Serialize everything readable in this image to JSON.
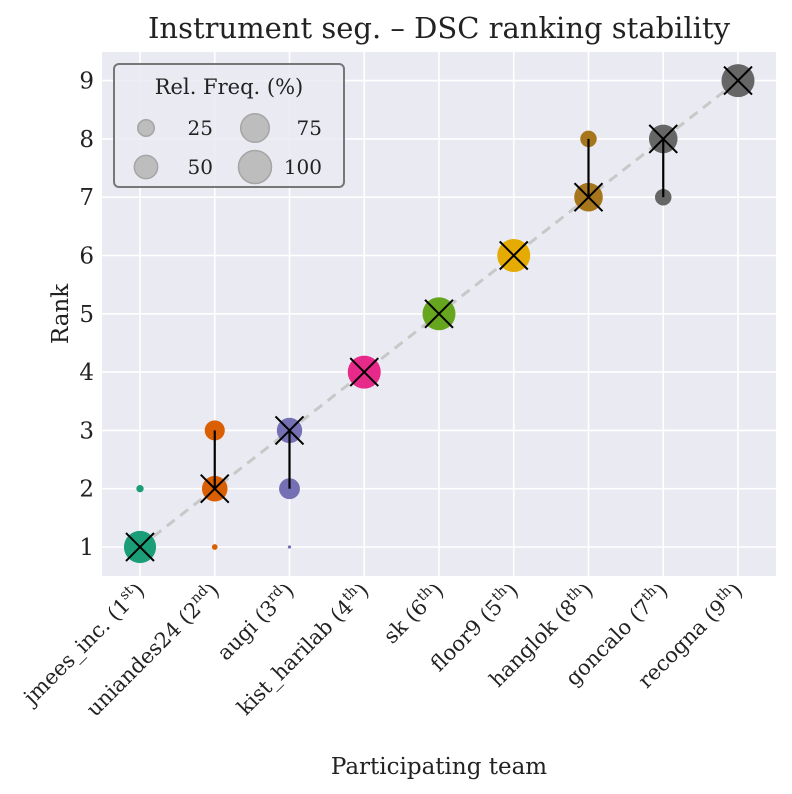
{
  "chart_data": {
    "type": "scatter",
    "title": "Instrument seg. – DSC ranking stability",
    "xlabel": "Participating team",
    "ylabel": "Rank",
    "ylim": [
      0.5,
      9.5
    ],
    "y_ticks": [
      "1",
      "2",
      "3",
      "4",
      "5",
      "6",
      "7",
      "8",
      "9"
    ],
    "grid": true,
    "legend": {
      "title": "Rel. Freq. (%)",
      "position": "top-left",
      "entries": [
        {
          "label": "25",
          "size_value": 25
        },
        {
          "label": "50",
          "size_value": 50
        },
        {
          "label": "75",
          "size_value": 75
        },
        {
          "label": "100",
          "size_value": 100
        }
      ]
    },
    "teams": [
      {
        "name": "jmees_inc.",
        "rank_ordinal": "1",
        "suffix": "st",
        "color": "#1b9e77",
        "median_rank": 1,
        "distribution": [
          {
            "rank": 1,
            "freq": 95
          },
          {
            "rank": 2,
            "freq": 5
          }
        ],
        "ci": [
          1,
          1
        ]
      },
      {
        "name": "uniandes24",
        "rank_ordinal": "2",
        "suffix": "nd",
        "color": "#d95f02",
        "median_rank": 2,
        "distribution": [
          {
            "rank": 1,
            "freq": 3
          },
          {
            "rank": 2,
            "freq": 60
          },
          {
            "rank": 3,
            "freq": 37
          }
        ],
        "ci": [
          2,
          3
        ]
      },
      {
        "name": "augi",
        "rank_ordinal": "3",
        "suffix": "rd",
        "color": "#7570b3",
        "median_rank": 3,
        "distribution": [
          {
            "rank": 1,
            "freq": 1
          },
          {
            "rank": 2,
            "freq": 40
          },
          {
            "rank": 3,
            "freq": 59
          }
        ],
        "ci": [
          2,
          3
        ]
      },
      {
        "name": "kist_harilab",
        "rank_ordinal": "4",
        "suffix": "th",
        "color": "#e7298a",
        "median_rank": 4,
        "distribution": [
          {
            "rank": 4,
            "freq": 100
          }
        ],
        "ci": [
          4,
          4
        ]
      },
      {
        "name": "sk",
        "rank_ordinal": "6",
        "suffix": "th",
        "color": "#66a61e",
        "median_rank": 5,
        "distribution": [
          {
            "rank": 5,
            "freq": 100
          }
        ],
        "ci": [
          5,
          5
        ]
      },
      {
        "name": "floor9",
        "rank_ordinal": "5",
        "suffix": "th",
        "color": "#e6ab02",
        "median_rank": 6,
        "distribution": [
          {
            "rank": 6,
            "freq": 100
          }
        ],
        "ci": [
          6,
          6
        ]
      },
      {
        "name": "hanglok",
        "rank_ordinal": "8",
        "suffix": "th",
        "color": "#a6761d",
        "median_rank": 7,
        "distribution": [
          {
            "rank": 7,
            "freq": 75
          },
          {
            "rank": 8,
            "freq": 25
          }
        ],
        "ci": [
          7,
          8
        ]
      },
      {
        "name": "goncalo",
        "rank_ordinal": "7",
        "suffix": "th",
        "color": "#666666",
        "median_rank": 8,
        "distribution": [
          {
            "rank": 7,
            "freq": 25
          },
          {
            "rank": 8,
            "freq": 75
          }
        ],
        "ci": [
          7,
          8
        ]
      },
      {
        "name": "recogna",
        "rank_ordinal": "9",
        "suffix": "th",
        "color": "#666666",
        "median_rank": 9,
        "distribution": [
          {
            "rank": 9,
            "freq": 100
          }
        ],
        "ci": [
          9,
          9
        ]
      }
    ]
  }
}
